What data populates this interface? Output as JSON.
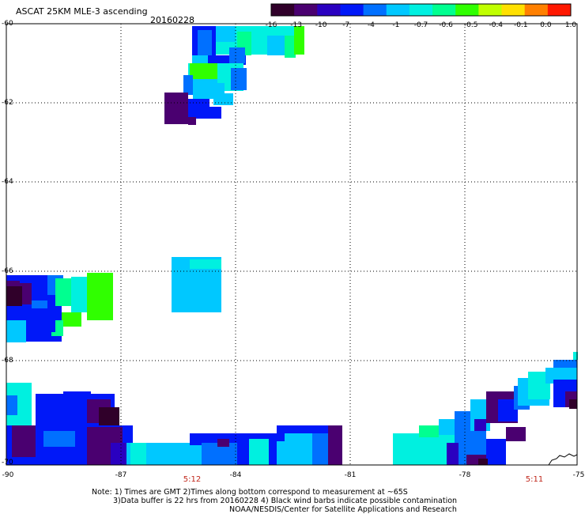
{
  "header": {
    "title": "ASCAT 25KM MLE-3 ascending",
    "date": "20160228"
  },
  "colorbar": {
    "labels": [
      "-16",
      "-13",
      "-10",
      "-7",
      "-4",
      "-1",
      "-0.7",
      "-0.6",
      "-0.5",
      "-0.4",
      "-0.1",
      "0.0",
      "1.0"
    ],
    "colors": [
      "#30002a",
      "#4a0070",
      "#2a00c0",
      "#0018f8",
      "#0070ff",
      "#00c8ff",
      "#00f0e0",
      "#00ff90",
      "#30ff00",
      "#c0ff00",
      "#ffe000",
      "#ff8000",
      "#ff1800"
    ]
  },
  "axes": {
    "lat_labels": [
      "-60",
      "-62",
      "-64",
      "-66",
      "-68",
      "-70"
    ],
    "lon_labels": [
      "-90",
      "-87",
      "-84",
      "-81",
      "-78",
      "-75"
    ]
  },
  "times": [
    "5:12",
    "5:11"
  ],
  "notes": {
    "line1": "Note: 1) Times are GMT 2)Times along bottom correspond to measurement at ~65S",
    "line2": "3)Data buffer is 22 hrs from 20160228 4) Black wind barbs indicate possible contamination",
    "line3": "NOAA/NESDIS/Center for Satellite Applications and Research"
  }
}
